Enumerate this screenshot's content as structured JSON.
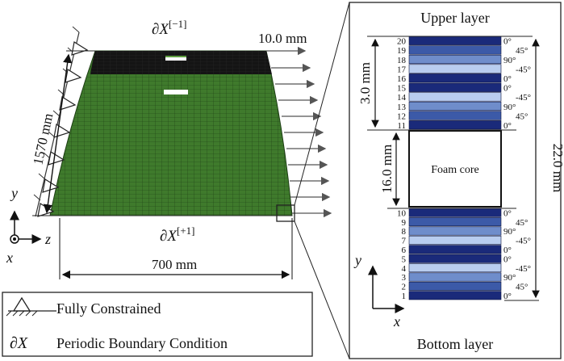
{
  "left_panel": {
    "top_boundary": "∂X[−1]",
    "top_boundary_base": "∂X",
    "top_boundary_sup": "[−1]",
    "bottom_boundary": "∂X[+1]",
    "bottom_boundary_base": "∂X",
    "bottom_boundary_sup": "[+1]",
    "displacement": "10.0 mm",
    "height_dim": "1570 mm",
    "width_dim": "700 mm",
    "axes": {
      "y": "y",
      "z": "z",
      "x": "x"
    }
  },
  "legend": {
    "items": [
      {
        "symbol": "triangle-support-icon",
        "text": "Fully Constrained"
      },
      {
        "symbol": "∂X",
        "text": "Periodic Boundary Condition"
      }
    ]
  },
  "right_panel": {
    "upper_title": "Upper layer",
    "bottom_title": "Bottom layer",
    "upper_thickness": "3.0 mm",
    "core_thickness": "16.0 mm",
    "total_thickness": "22.0 mm",
    "core_label": "Foam core",
    "upper_plies": [
      "20",
      "19",
      "18",
      "17",
      "16",
      "15",
      "14",
      "13",
      "12",
      "11"
    ],
    "bottom_plies": [
      "10",
      "9",
      "8",
      "7",
      "6",
      "5",
      "4",
      "3",
      "2",
      "1"
    ],
    "upper_angles": [
      "0°",
      "45°",
      "90°",
      "-45°",
      "0°",
      "0°",
      "-45°",
      "90°",
      "45°",
      "0°"
    ],
    "bottom_angles": [
      "0°",
      "45°",
      "90°",
      "-45°",
      "0°",
      "0°",
      "-45°",
      "90°",
      "45°",
      "0°"
    ],
    "axes": {
      "y": "y",
      "x": "x"
    },
    "colors": {
      "ply_0": "#1a2a7a",
      "ply_45": "#3c5aa8",
      "ply_90": "#6f8dcb",
      "ply_m45": "#b9cdef",
      "mesh": "#3a6b2a",
      "mesh_line": "#1d3d14"
    }
  }
}
